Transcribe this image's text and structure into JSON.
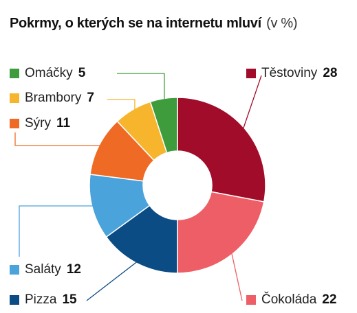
{
  "chart_data": {
    "type": "pie",
    "title": "Pokrmy, o kterých se na internetu mluví",
    "unit": "(v %)",
    "slices": [
      {
        "label": "Těstoviny",
        "value": 28,
        "color": "#a10c2a"
      },
      {
        "label": "Čokoláda",
        "value": 22,
        "color": "#ee5e66"
      },
      {
        "label": "Pizza",
        "value": 15,
        "color": "#0b4c85"
      },
      {
        "label": "Saláty",
        "value": 12,
        "color": "#4aa3db"
      },
      {
        "label": "Sýry",
        "value": 11,
        "color": "#ef6a24"
      },
      {
        "label": "Brambory",
        "value": 7,
        "color": "#f6b52d"
      },
      {
        "label": "Omáčky",
        "value": 5,
        "color": "#3f9c3c"
      }
    ]
  }
}
